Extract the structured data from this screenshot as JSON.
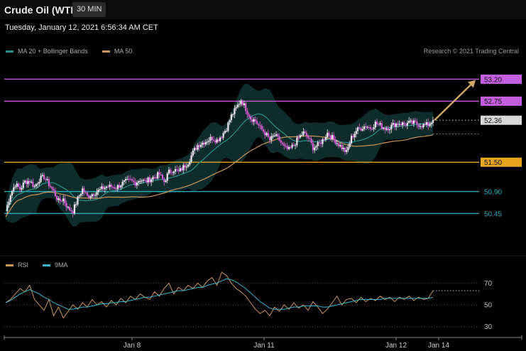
{
  "header": {
    "title": "Crude Oil (WTI)",
    "timeframe": "30 MIN",
    "datetime": "Tuesday, January 12, 2021 6:56:34 AM CET"
  },
  "legend": {
    "ma20_label": "MA 20 + Bollinger Bands",
    "ma50_label": "MA 50",
    "rsi_label": "RSI",
    "rsi_ma_label": "9MA",
    "credit": "Research © 2021 Trading Central"
  },
  "colors": {
    "background": "#000000",
    "bullish": "#f3e9f3",
    "bearish": "#d95fd6",
    "ma20": "#2a8f8a",
    "ma50": "#c8955a",
    "bands": "#123b3a",
    "resistance": "#c45ee0",
    "support": "#e6a51d",
    "support_cyan": "#2aaab8",
    "last_price": "#d7d7d7",
    "rsi": "#c8955a",
    "rsi_ma": "#39b2cf",
    "arrow": "#d0a66b"
  },
  "chart_data": [
    {
      "type": "candlestick",
      "title": "Crude Oil (WTI)",
      "timeframe": "30 MIN",
      "ylim": [
        49.7,
        53.6
      ],
      "x_ticks": [
        "Jan 8",
        "Jan 11",
        "Jan 12",
        "Jan 14"
      ],
      "levels": [
        {
          "value": 53.2,
          "label": "53.20",
          "kind": "resistance"
        },
        {
          "value": 52.75,
          "label": "52.75",
          "kind": "resistance"
        },
        {
          "value": 52.36,
          "label": "52.36",
          "kind": "last"
        },
        {
          "value": 51.5,
          "label": "51.50",
          "kind": "support"
        },
        {
          "value": 50.9,
          "label": "50.90",
          "kind": "support_minor"
        },
        {
          "value": 50.45,
          "label": "50.45",
          "kind": "support_minor"
        }
      ],
      "forecast_arrow": {
        "from": 52.36,
        "to": 53.2
      },
      "series": [
        {
          "name": "MA 20 + Bollinger Bands"
        },
        {
          "name": "MA 50"
        }
      ],
      "close_path": [
        50.5,
        50.85,
        51.05,
        50.95,
        51.1,
        51.12,
        51.0,
        51.15,
        51.2,
        51.05,
        50.9,
        50.7,
        50.75,
        50.55,
        50.5,
        50.75,
        50.95,
        50.8,
        50.85,
        50.9,
        50.95,
        51.0,
        51.0,
        50.98,
        51.05,
        51.1,
        51.12,
        51.08,
        51.15,
        51.1,
        51.15,
        51.2,
        51.25,
        51.1,
        51.3,
        51.35,
        51.3,
        51.4,
        51.5,
        51.7,
        51.85,
        51.9,
        51.95,
        52.0,
        51.95,
        52.05,
        52.2,
        52.45,
        52.6,
        52.78,
        52.6,
        52.4,
        52.35,
        52.2,
        52.1,
        51.95,
        52.05,
        51.95,
        51.8,
        51.75,
        51.85,
        52.0,
        52.1,
        52.0,
        51.8,
        51.85,
        51.95,
        52.1,
        52.0,
        51.9,
        51.8,
        51.7,
        52.0,
        52.15,
        52.2,
        52.25,
        52.2,
        52.3,
        52.25,
        52.2,
        52.22,
        52.28,
        52.3,
        52.28,
        52.3,
        52.3,
        52.28,
        52.25,
        52.27,
        52.36
      ]
    },
    {
      "type": "line",
      "title": "RSI",
      "ylim": [
        22,
        82
      ],
      "y_ticks": [
        70,
        50,
        30
      ],
      "series": [
        {
          "name": "RSI",
          "values": [
            52,
            55,
            60,
            65,
            62,
            68,
            55,
            50,
            45,
            55,
            40,
            48,
            38,
            44,
            50,
            46,
            52,
            48,
            55,
            50,
            53,
            48,
            54,
            50,
            56,
            52,
            58,
            55,
            60,
            57,
            55,
            62,
            58,
            65,
            70,
            60,
            66,
            63,
            68,
            65,
            70,
            66,
            72,
            75,
            68,
            80,
            77,
            70,
            65,
            62,
            58,
            52,
            46,
            42,
            45,
            40,
            48,
            44,
            50,
            46,
            52,
            47,
            50,
            45,
            53,
            48,
            42,
            46,
            52,
            58,
            50,
            55,
            56,
            52,
            57,
            53,
            56,
            54,
            58,
            55,
            57,
            53,
            57,
            55,
            58,
            54,
            57,
            55,
            56,
            63
          ]
        },
        {
          "name": "9MA",
          "values": [
            52,
            54,
            57,
            60,
            62,
            64,
            62,
            60,
            57,
            55,
            52,
            50,
            48,
            46,
            46,
            47,
            48,
            48,
            49,
            50,
            51,
            51,
            52,
            52,
            53,
            53,
            54,
            55,
            56,
            57,
            57,
            58,
            59,
            60,
            61,
            62,
            63,
            63,
            64,
            65,
            66,
            66,
            68,
            69,
            70,
            72,
            74,
            73,
            71,
            68,
            65,
            61,
            57,
            53,
            50,
            47,
            46,
            46,
            46,
            47,
            48,
            48,
            49,
            49,
            49,
            49,
            48,
            48,
            49,
            50,
            51,
            52,
            53,
            54,
            55,
            55,
            55,
            55,
            55,
            56,
            56,
            56,
            56,
            56,
            56,
            56,
            56,
            56,
            56,
            57
          ]
        }
      ],
      "overbought_dotted": 63
    }
  ]
}
